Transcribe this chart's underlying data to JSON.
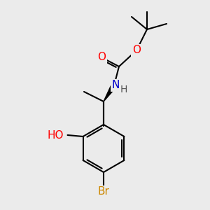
{
  "bg_color": "#ebebeb",
  "bond_color": "#000000",
  "bond_width": 1.5,
  "atom_colors": {
    "O": "#ff0000",
    "N": "#0000cc",
    "Br": "#cc8800",
    "C": "#000000",
    "H": "#555555"
  },
  "font_size_atoms": 11,
  "font_size_h": 10
}
